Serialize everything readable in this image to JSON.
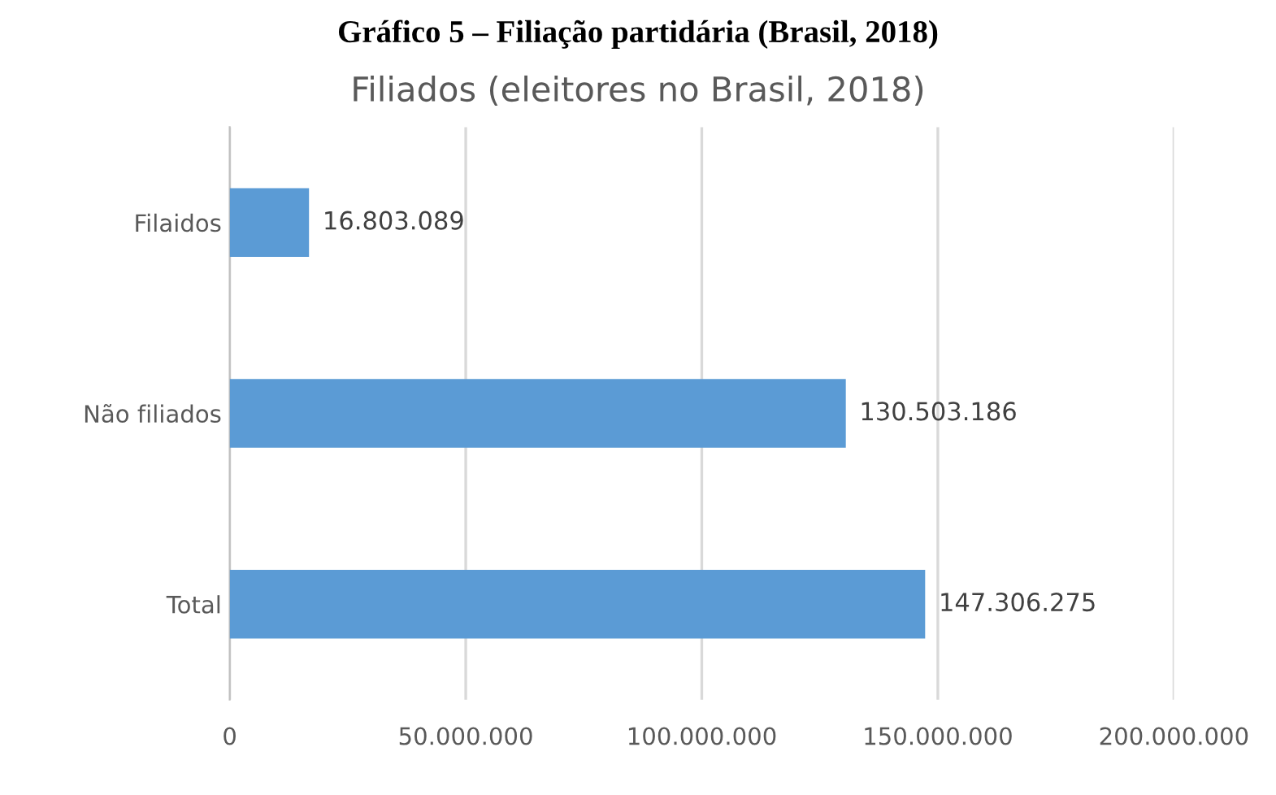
{
  "chart_data": {
    "type": "bar",
    "orientation": "horizontal",
    "title": "Gráfico 5 – Filiação partidária (Brasil, 2018)",
    "subtitle": "Filiados (eleitores no Brasil, 2018)",
    "categories": [
      "Filaidos",
      "Não filiados",
      "Total"
    ],
    "values": [
      16803089,
      130503186,
      147306275
    ],
    "value_labels": [
      "16.803.089",
      "130.503.186",
      "147.306.275"
    ],
    "color": "#5b9bd5",
    "xlim": [
      0,
      200000000
    ],
    "xticks": [
      0,
      {
        "value": 50000000,
        "label": "50.000.000"
      },
      {
        "value": 100000000,
        "label": "100.000.000"
      },
      {
        "value": 150000000,
        "label": "150.000.000"
      },
      {
        "value": 200000000,
        "label": "200.000.000"
      }
    ],
    "grid": "x"
  }
}
